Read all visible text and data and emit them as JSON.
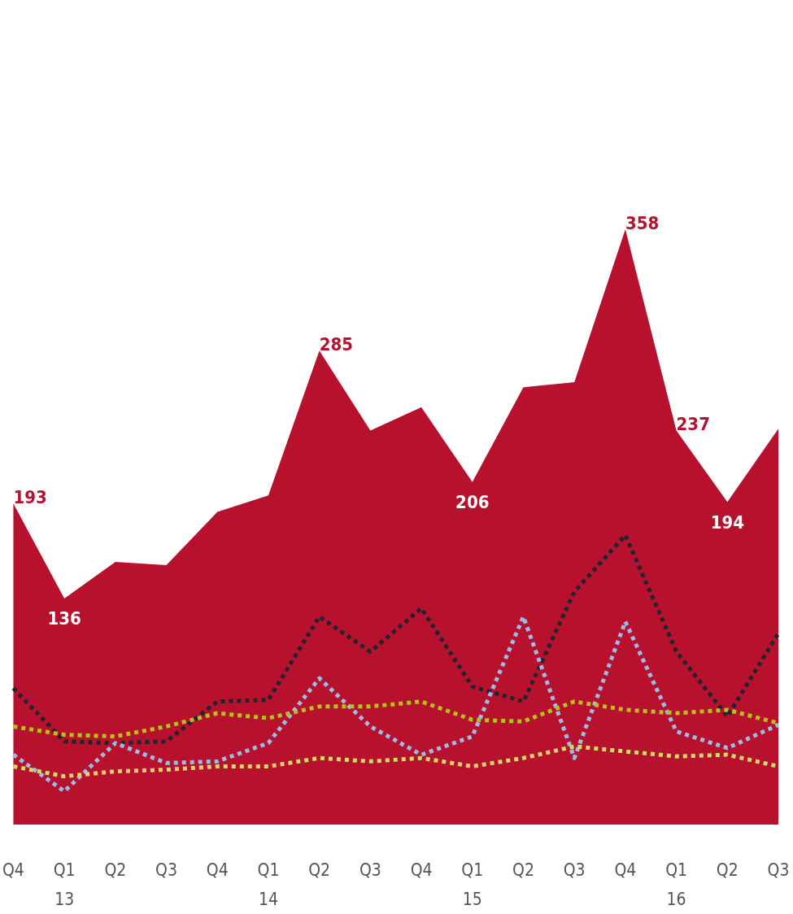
{
  "chart_data": {
    "type": "area",
    "categories": [
      "Q4",
      "Q1\n13",
      "Q2",
      "Q3",
      "Q4",
      "Q1\n14",
      "Q2",
      "Q3",
      "Q4",
      "Q1\n15",
      "Q2",
      "Q3",
      "Q4",
      "Q1\n16",
      "Q2",
      "Q3"
    ],
    "tick_labels": "x",
    "grid": false,
    "marker": "none",
    "series": [
      {
        "color": "#b8112e",
        "values": [
          193,
          136,
          158,
          156,
          188,
          198,
          285,
          237,
          251,
          206,
          263,
          266,
          358,
          237,
          194,
          238
        ],
        "value_labels": [
          "193",
          "136",
          null,
          null,
          null,
          null,
          "285",
          null,
          null,
          "206",
          null,
          null,
          "358",
          "237",
          "194",
          null
        ]
      },
      {
        "type": "line",
        "color": "#1e2430",
        "line_style": "dotted",
        "values": [
          82,
          50,
          49,
          50,
          74,
          75,
          125,
          104,
          130,
          83,
          74,
          140,
          174,
          104,
          65,
          115
        ]
      },
      {
        "type": "line",
        "color": "#9bbce6",
        "line_style": "dotted",
        "values": [
          42,
          20,
          49,
          37,
          38,
          49,
          88,
          59,
          42,
          53,
          125,
          40,
          122,
          56,
          46,
          60
        ]
      },
      {
        "type": "line",
        "color": "#b5c21a",
        "line_style": "dotted",
        "values": [
          59,
          54,
          53,
          59,
          67,
          64,
          71,
          71,
          74,
          63,
          62,
          74,
          69,
          67,
          69,
          61
        ]
      },
      {
        "type": "line",
        "color": "#d4d96a",
        "line_style": "dotted",
        "values": [
          35,
          29,
          32,
          33,
          35,
          35,
          40,
          38,
          40,
          35,
          40,
          47,
          44,
          41,
          42,
          35
        ]
      }
    ]
  }
}
